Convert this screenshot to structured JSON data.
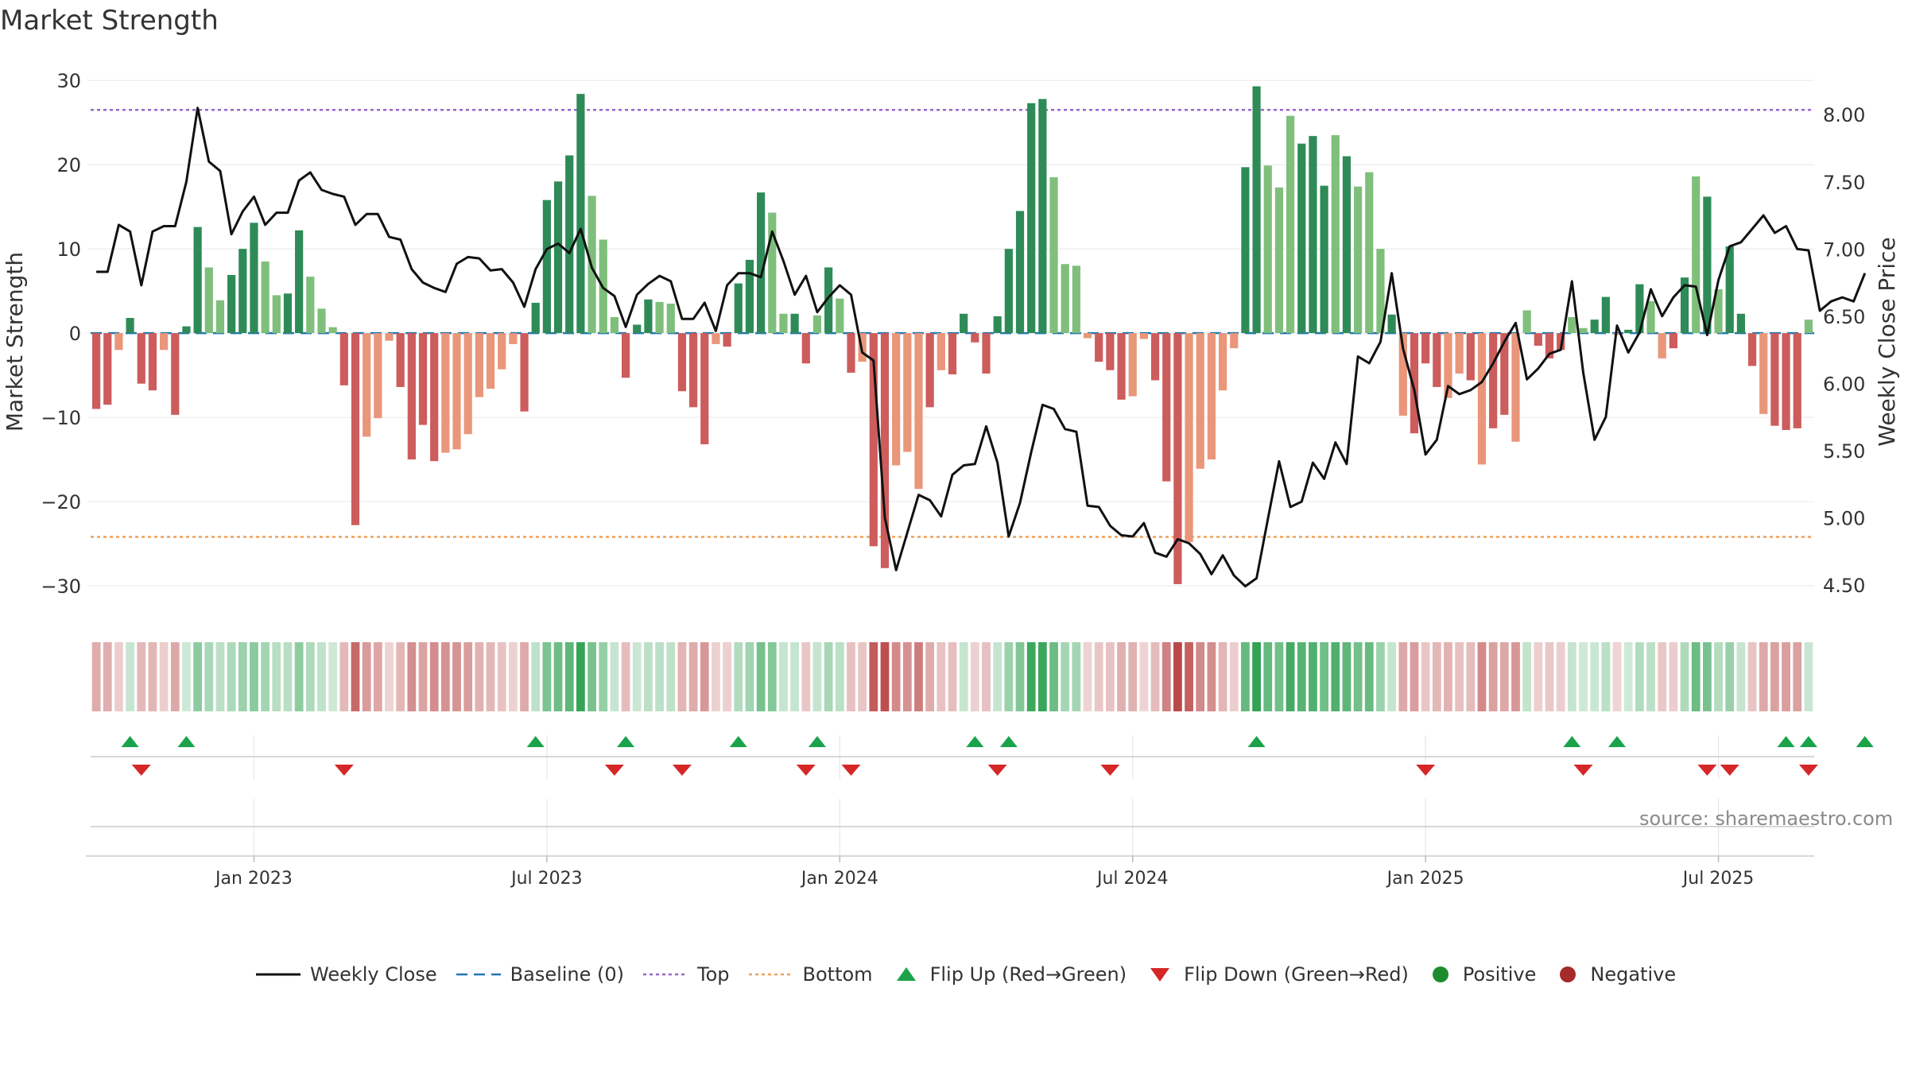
{
  "title": "Market Strength",
  "source": "source: sharemaestro.com",
  "colors": {
    "dark_green": "#2e8b57",
    "light_green": "#7fbf7b",
    "dark_red": "#cd5c5c",
    "light_red": "#e9967a",
    "price_line": "#111111",
    "top_line": "#9966cc",
    "bottom_line": "#f0a05a",
    "baseline": "#1f77b4",
    "flip_up": "#1aa34a",
    "flip_down": "#d62728",
    "positive": "#1e8c2e",
    "negative": "#a52a2a"
  },
  "legend": [
    {
      "key": "weekly_close",
      "label": "Weekly Close"
    },
    {
      "key": "baseline",
      "label": "Baseline (0)"
    },
    {
      "key": "top",
      "label": "Top"
    },
    {
      "key": "bottom",
      "label": "Bottom"
    },
    {
      "key": "flip_up",
      "label": "Flip Up (Red→Green)"
    },
    {
      "key": "flip_down",
      "label": "Flip Down (Green→Red)"
    },
    {
      "key": "positive",
      "label": "Positive"
    },
    {
      "key": "negative",
      "label": "Negative"
    }
  ],
  "chart_data": {
    "type": "bar",
    "title": "Market Strength",
    "ylabel_left": "Market Strength",
    "ylabel_right": "Weekly Close Price",
    "ylim_left": [
      -35,
      32
    ],
    "ylim_right": [
      4.18,
      8.38
    ],
    "yticks_left": [
      30,
      20,
      10,
      0,
      -10,
      -20,
      -30
    ],
    "yticks_left_labels": [
      "30",
      "20",
      "10",
      "0",
      "−10",
      "−20",
      "−30"
    ],
    "yticks_right": [
      8.0,
      7.5,
      7.0,
      6.5,
      6.0,
      5.5,
      5.0,
      4.5
    ],
    "yticks_right_labels": [
      "8.00",
      "7.50",
      "7.00",
      "6.50",
      "6.00",
      "5.50",
      "5.00",
      "4.50"
    ],
    "x_ticks": [
      {
        "index": 14,
        "label": "Jan 2023"
      },
      {
        "index": 40,
        "label": "Jul 2023"
      },
      {
        "index": 66,
        "label": "Jan 2024"
      },
      {
        "index": 92,
        "label": "Jul 2024"
      },
      {
        "index": 118,
        "label": "Jan 2025"
      },
      {
        "index": 144,
        "label": "Jul 2025"
      }
    ],
    "top_level": 26.5,
    "bottom_level": -24.2,
    "baseline": 0,
    "strength": [
      -9,
      -8.5,
      -2,
      1.8,
      -6,
      -6.8,
      -2,
      -9.7,
      0.8,
      12.6,
      7.8,
      3.9,
      6.9,
      10,
      13.1,
      8.5,
      4.5,
      4.7,
      12.2,
      6.7,
      2.9,
      0.7,
      -6.2,
      -22.8,
      -12.3,
      -10.1,
      -0.9,
      -6.4,
      -15,
      -10.9,
      -15.2,
      -14.2,
      -13.8,
      -12,
      -7.6,
      -6.6,
      -4.3,
      -1.3,
      -9.3,
      3.6,
      15.8,
      18,
      21.1,
      28.4,
      16.3,
      11.1,
      1.9,
      -5.3,
      1,
      4,
      3.7,
      3.5,
      -6.9,
      -8.8,
      -13.2,
      -1.3,
      -1.6,
      5.9,
      8.7,
      16.7,
      14.3,
      2.3,
      2.3,
      -3.6,
      2.1,
      7.8,
      4.1,
      -4.7,
      -3.4,
      -25.3,
      -27.9,
      -15.7,
      -14.1,
      -18.5,
      -8.8,
      -4.4,
      -4.9,
      2.3,
      -1.1,
      -4.8,
      2,
      10,
      14.5,
      27.3,
      27.8,
      18.5,
      8.2,
      8,
      -0.6,
      -3.4,
      -4.4,
      -7.9,
      -7.5,
      -0.7,
      -5.6,
      -17.6,
      -29.8,
      -24.8,
      -16.1,
      -15,
      -6.8,
      -1.8,
      19.7,
      29.3,
      19.9,
      17.3,
      25.8,
      22.5,
      23.4,
      17.5,
      23.5,
      21,
      17.4,
      19.1,
      10,
      2.2,
      -9.8,
      -11.9,
      -3.6,
      -6.4,
      -7.7,
      -4.8,
      -5.6,
      -15.6,
      -11.3,
      -9.7,
      -12.9,
      2.7,
      -1.5,
      -3,
      -2,
      1.9,
      0.6,
      1.6,
      4.3,
      -0.2,
      0.4,
      5.8,
      3.8,
      -3,
      -1.8,
      6.6,
      18.6,
      16.2,
      5.2,
      10.3,
      2.3,
      -3.9,
      -9.6,
      -11,
      -11.5,
      -11.3,
      1.6
    ],
    "shade": [
      1,
      1,
      0,
      1,
      1,
      1,
      0,
      1,
      1,
      1,
      0,
      0,
      1,
      1,
      1,
      0,
      0,
      1,
      1,
      0,
      0,
      0,
      1,
      1,
      0,
      0,
      0,
      1,
      1,
      1,
      1,
      0,
      0,
      0,
      0,
      0,
      0,
      0,
      1,
      1,
      1,
      1,
      1,
      1,
      0,
      0,
      0,
      1,
      1,
      1,
      0,
      0,
      1,
      1,
      1,
      0,
      1,
      1,
      1,
      1,
      0,
      0,
      1,
      1,
      0,
      1,
      0,
      1,
      0,
      1,
      1,
      0,
      0,
      0,
      1,
      0,
      1,
      1,
      1,
      1,
      1,
      1,
      1,
      1,
      1,
      0,
      0,
      0,
      0,
      1,
      1,
      1,
      0,
      0,
      1,
      1,
      1,
      0,
      0,
      0,
      0,
      0,
      1,
      1,
      0,
      0,
      0,
      1,
      1,
      1,
      0,
      1,
      0,
      0,
      0,
      1,
      0,
      1,
      1,
      1,
      0,
      0,
      1,
      0,
      1,
      1,
      0,
      0,
      1,
      1,
      1,
      0,
      0,
      1,
      1,
      0,
      1,
      1,
      0,
      0,
      1,
      1,
      0,
      1,
      0,
      1,
      1,
      1,
      0,
      1,
      1,
      1,
      0,
      0
    ],
    "weekly_close": [
      6.83,
      6.83,
      7.18,
      7.13,
      6.73,
      7.13,
      7.17,
      7.17,
      7.5,
      8.05,
      7.65,
      7.58,
      7.11,
      7.28,
      7.39,
      7.18,
      7.27,
      7.27,
      7.51,
      7.57,
      7.44,
      7.41,
      7.39,
      7.18,
      7.26,
      7.26,
      7.09,
      7.07,
      6.85,
      6.75,
      6.71,
      6.68,
      6.89,
      6.94,
      6.93,
      6.84,
      6.85,
      6.75,
      6.57,
      6.85,
      7.0,
      7.04,
      6.97,
      7.15,
      6.86,
      6.71,
      6.65,
      6.42,
      6.66,
      6.74,
      6.8,
      6.76,
      6.48,
      6.48,
      6.6,
      6.39,
      6.73,
      6.82,
      6.82,
      6.79,
      7.13,
      6.91,
      6.66,
      6.8,
      6.53,
      6.64,
      6.73,
      6.66,
      6.23,
      6.17,
      5.0,
      4.61,
      4.89,
      5.17,
      5.13,
      5.01,
      5.32,
      5.39,
      5.4,
      5.68,
      5.41,
      4.86,
      5.11,
      5.49,
      5.84,
      5.81,
      5.66,
      5.64,
      5.09,
      5.08,
      4.94,
      4.87,
      4.86,
      4.96,
      4.74,
      4.71,
      4.84,
      4.81,
      4.73,
      4.58,
      4.72,
      4.57,
      4.49,
      4.55,
      4.99,
      5.42,
      5.08,
      5.12,
      5.41,
      5.29,
      5.56,
      5.4,
      6.2,
      6.15,
      6.31,
      6.82,
      6.26,
      5.95,
      5.47,
      5.58,
      5.98,
      5.92,
      5.95,
      6.01,
      6.15,
      6.31,
      6.45,
      6.03,
      6.11,
      6.22,
      6.25,
      6.76,
      6.08,
      5.58,
      5.75,
      6.43,
      6.23,
      6.38,
      6.7,
      6.5,
      6.64,
      6.73,
      6.72,
      6.36,
      6.77,
      7.02,
      7.05,
      7.15,
      7.25,
      7.12,
      7.17,
      7.0,
      6.99,
      6.54,
      6.61,
      6.64,
      6.61,
      6.82
    ],
    "flip_up_indices": [
      3,
      8,
      39,
      47,
      57,
      64,
      78,
      81,
      103,
      131,
      135,
      150,
      152,
      157
    ],
    "flip_down_indices": [
      4,
      22,
      46,
      52,
      63,
      67,
      80,
      90,
      118,
      132,
      143,
      145,
      152
    ]
  }
}
